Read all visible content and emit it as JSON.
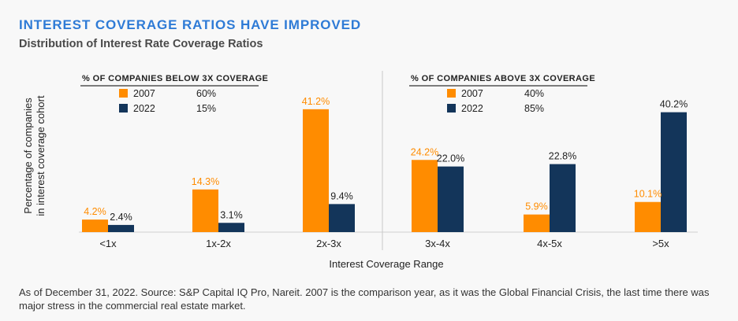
{
  "title": "INTEREST COVERAGE RATIOS HAVE IMPROVED",
  "subtitle": "Distribution of Interest Rate Coverage Ratios",
  "footnote": "As of December 31, 2022. Source: S&P Capital IQ Pro, Nareit. 2007 is the comparison year, as it was the Global Financial Crisis, the last time there was major stress in the commercial real estate market.",
  "colors": {
    "s2007": "#ff8c00",
    "s2022": "#13355a",
    "title": "#2f7bd6"
  },
  "legends": [
    {
      "heading": "% OF COMPANIES BELOW 3X COVERAGE",
      "rows": [
        {
          "series": "2007",
          "value": "60%"
        },
        {
          "series": "2022",
          "value": "15%"
        }
      ]
    },
    {
      "heading": "% OF COMPANIES ABOVE 3X COVERAGE",
      "rows": [
        {
          "series": "2007",
          "value": "40%"
        },
        {
          "series": "2022",
          "value": "85%"
        }
      ]
    }
  ],
  "chart_data": {
    "type": "bar",
    "title": "Distribution of Interest Rate Coverage Ratios",
    "xlabel": "Interest Coverage Range",
    "ylabel": "Percentage of companies in interest coverage cohort",
    "categories": [
      "<1x",
      "1x-2x",
      "2x-3x",
      "3x-4x",
      "4x-5x",
      ">5x"
    ],
    "series": [
      {
        "name": "2007",
        "values": [
          4.2,
          14.3,
          41.2,
          24.2,
          5.9,
          10.1
        ],
        "labels": [
          "4.2%",
          "14.3%",
          "41.2%",
          "24.2%",
          "5.9%",
          "10.1%"
        ]
      },
      {
        "name": "2022",
        "values": [
          2.4,
          3.1,
          9.4,
          22.0,
          22.8,
          40.2
        ],
        "labels": [
          "2.4%",
          "3.1%",
          "9.4%",
          "22.0%",
          "22.8%",
          "40.2%"
        ]
      }
    ],
    "ylim": [
      0,
      42
    ],
    "grid": false,
    "divider_after_category": "2x-3x"
  }
}
